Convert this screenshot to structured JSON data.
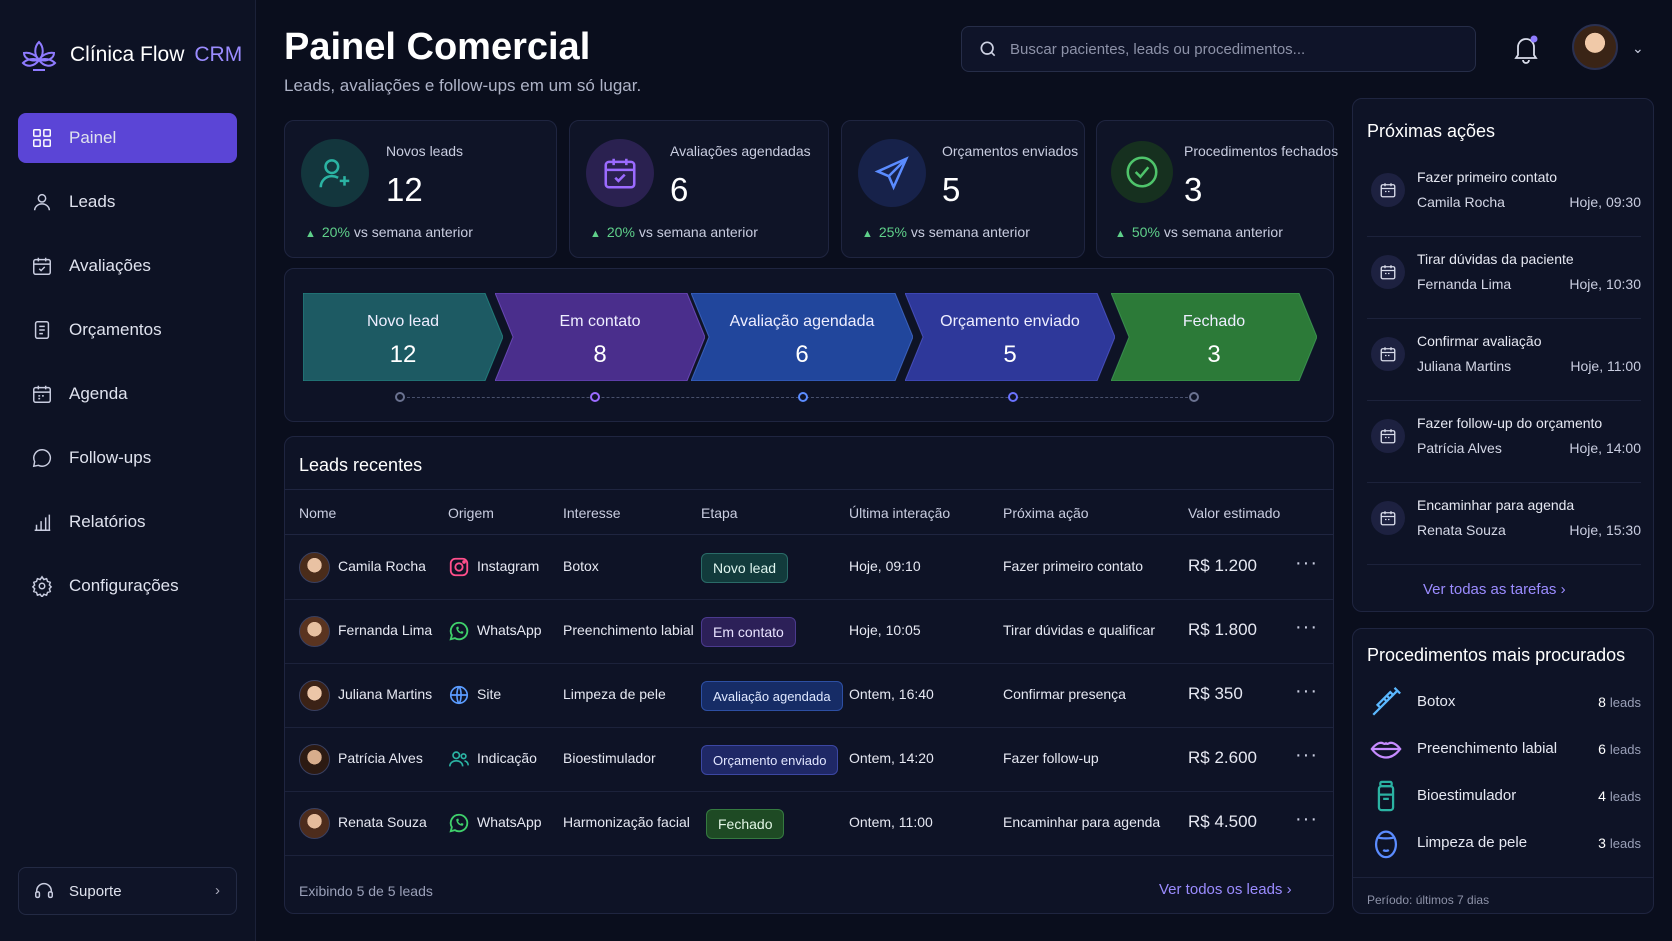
{
  "brand": {
    "name": "Clínica Flow",
    "suffix": "CRM"
  },
  "nav": [
    {
      "label": "Painel",
      "icon": "grid-icon",
      "active": true
    },
    {
      "label": "Leads",
      "icon": "user-icon"
    },
    {
      "label": "Avaliações",
      "icon": "calendar-check-icon"
    },
    {
      "label": "Orçamentos",
      "icon": "document-icon"
    },
    {
      "label": "Agenda",
      "icon": "calendar-icon"
    },
    {
      "label": "Follow-ups",
      "icon": "chat-icon"
    },
    {
      "label": "Relatórios",
      "icon": "bar-chart-icon"
    },
    {
      "label": "Configurações",
      "icon": "gear-icon"
    }
  ],
  "support": {
    "label": "Suporte"
  },
  "header": {
    "title": "Painel Comercial",
    "subtitle": "Leads, avaliações e follow-ups em um só lugar.",
    "search_placeholder": "Buscar pacientes, leads ou procedimentos..."
  },
  "kpis": [
    {
      "label": "Novos leads",
      "value": "12",
      "pct": "20%",
      "suffix": "vs semana anterior",
      "icon": "user-plus-icon",
      "color": "#2bb3a3"
    },
    {
      "label": "Avaliações agendadas",
      "value": "6",
      "pct": "20%",
      "suffix": "vs semana anterior",
      "icon": "calendar-check-icon",
      "color": "#9b6bff"
    },
    {
      "label": "Orçamentos enviados",
      "value": "5",
      "pct": "25%",
      "suffix": "vs semana anterior",
      "icon": "paper-plane-icon",
      "color": "#5b8cff"
    },
    {
      "label": "Procedimentos fechados",
      "value": "3",
      "pct": "50%",
      "suffix": "vs semana anterior",
      "icon": "check-circle-icon",
      "color": "#4fc46b"
    }
  ],
  "pipeline": [
    {
      "label": "Novo lead",
      "value": "12",
      "color": "#1f5a62"
    },
    {
      "label": "Em contato",
      "value": "8",
      "color": "#4b2f8a"
    },
    {
      "label": "Avaliação agendada",
      "value": "6",
      "color": "#22449a"
    },
    {
      "label": "Orçamento enviado",
      "value": "5",
      "color": "#2f3a9a"
    },
    {
      "label": "Fechado",
      "value": "3",
      "color": "#2f7a3a"
    }
  ],
  "leads": {
    "title": "Leads recentes",
    "columns": [
      "Nome",
      "Origem",
      "Interesse",
      "Etapa",
      "Última interação",
      "Próxima ação",
      "Valor estimado"
    ],
    "rows": [
      {
        "name": "Camila Rocha",
        "source": "Instagram",
        "source_icon": "instagram-icon",
        "interest": "Botox",
        "stage": "Novo lead",
        "last": "Hoje,  09:10",
        "next": "Fazer primeiro contato",
        "value": "R$ 1.200"
      },
      {
        "name": "Fernanda Lima",
        "source": "WhatsApp",
        "source_icon": "whatsapp-icon",
        "interest": "Preenchimento labial",
        "stage": "Em contato",
        "last": "Hoje,  10:05",
        "next": "Tirar dúvidas e qualificar",
        "value": "R$ 1.800"
      },
      {
        "name": "Juliana Martins",
        "source": "Site",
        "source_icon": "globe-icon",
        "interest": "Limpeza de pele",
        "stage": "Avaliação agendada",
        "last": "Ontem,  16:40",
        "next": "Confirmar presença",
        "value": "R$ 350"
      },
      {
        "name": "Patrícia Alves",
        "source": "Indicação",
        "source_icon": "users-icon",
        "interest": "Bioestimulador",
        "stage": "Orçamento enviado",
        "last": "Ontem,  14:20",
        "next": "Fazer follow-up",
        "value": "R$ 2.600"
      },
      {
        "name": "Renata Souza",
        "source": "WhatsApp",
        "source_icon": "whatsapp-icon",
        "interest": "Harmonização facial",
        "stage": "Fechado",
        "last": "Ontem,  11:00",
        "next": "Encaminhar para agenda",
        "value": "R$ 4.500"
      }
    ],
    "footer": "Exibindo 5 de 5 leads",
    "link": "Ver todos os leads"
  },
  "tasks": {
    "title": "Próximas ações",
    "items": [
      {
        "title": "Fazer primeiro contato",
        "name": "Camila Rocha",
        "time": "Hoje, 09:30"
      },
      {
        "title": "Tirar dúvidas da paciente",
        "name": "Fernanda Lima",
        "time": "Hoje, 10:30"
      },
      {
        "title": "Confirmar avaliação",
        "name": "Juliana Martins",
        "time": "Hoje, 11:00"
      },
      {
        "title": "Fazer follow-up do orçamento",
        "name": "Patrícia Alves",
        "time": "Hoje, 14:00"
      },
      {
        "title": "Encaminhar para agenda",
        "name": "Renata Souza",
        "time": "Hoje, 15:30"
      }
    ],
    "link": "Ver todas as tarefas"
  },
  "procedures": {
    "title": "Procedimentos mais procurados",
    "unit": "leads",
    "items": [
      {
        "name": "Botox",
        "count": "8",
        "icon": "syringe-icon"
      },
      {
        "name": "Preenchimento labial",
        "count": "6",
        "icon": "lips-icon"
      },
      {
        "name": "Bioestimulador",
        "count": "4",
        "icon": "vial-icon"
      },
      {
        "name": "Limpeza de pele",
        "count": "3",
        "icon": "face-icon"
      }
    ],
    "period": "Período: últimos 7 dias"
  }
}
